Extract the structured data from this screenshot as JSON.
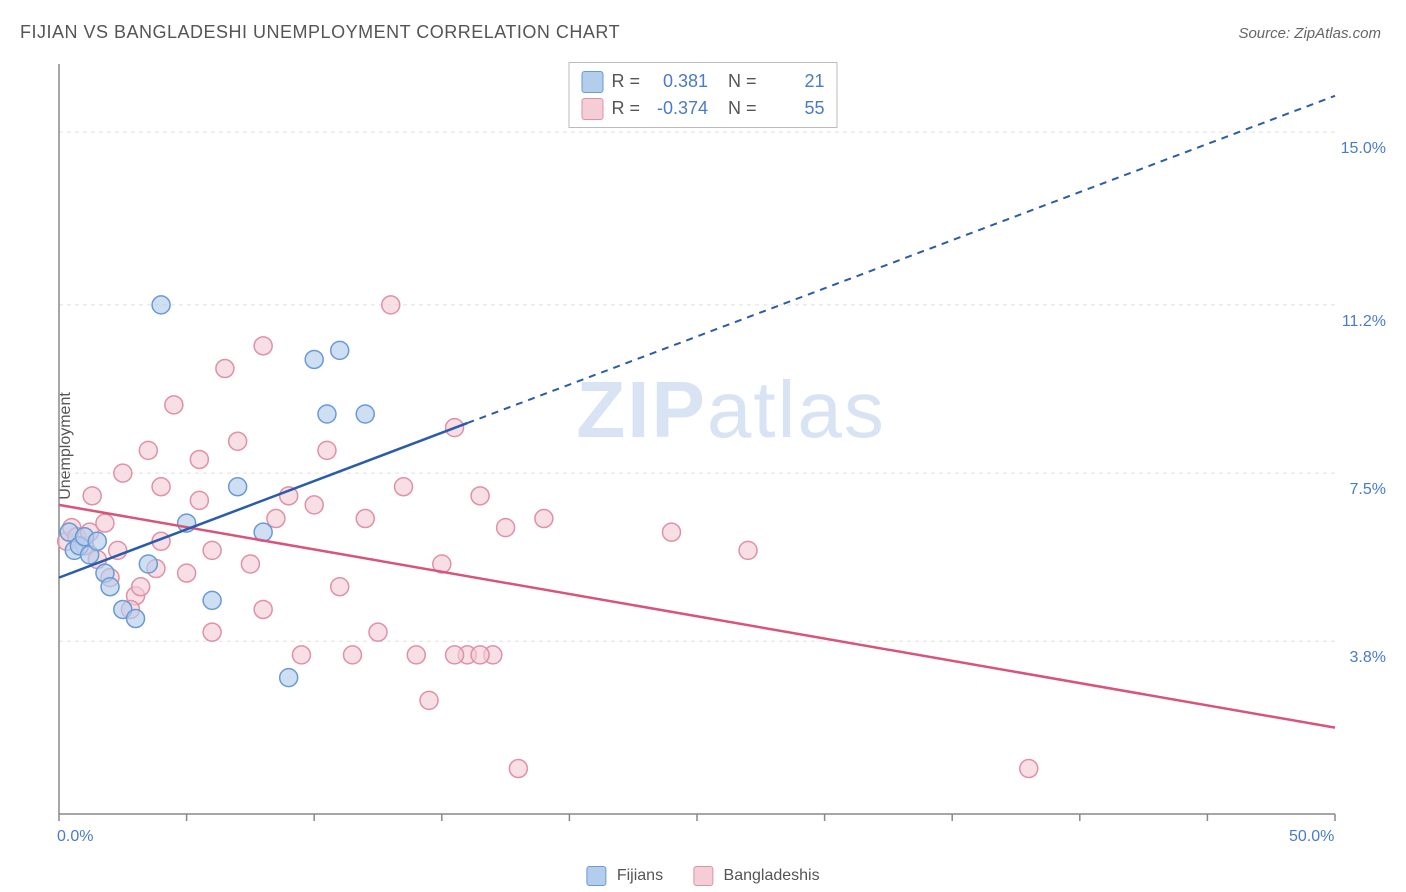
{
  "title": "FIJIAN VS BANGLADESHI UNEMPLOYMENT CORRELATION CHART",
  "source": "Source: ZipAtlas.com",
  "y_axis_label": "Unemployment",
  "watermark_zip": "ZIP",
  "watermark_atlas": "atlas",
  "chart": {
    "type": "scatter",
    "xlim": [
      0,
      50
    ],
    "ylim": [
      0,
      16.5
    ],
    "background_color": "#ffffff",
    "grid_color": "#e0e0e0",
    "axis_line_color": "#888888",
    "tick_color": "#888888",
    "x_ticks": [
      0,
      5,
      10,
      15,
      20,
      25,
      30,
      35,
      40,
      45,
      50
    ],
    "x_tick_labels": {
      "0": "0.0%",
      "50": "50.0%"
    },
    "y_gridlines": [
      3.8,
      7.5,
      11.2,
      15.0
    ],
    "y_tick_labels": {
      "3.8": "3.8%",
      "7.5": "7.5%",
      "11.2": "11.2%",
      "15.0": "15.0%"
    },
    "y_label_color": "#4a7bc8",
    "marker_radius": 9,
    "marker_stroke_width": 1.5,
    "line_width_solid": 2.5,
    "line_width_dashed": 2,
    "dash_pattern": "7,6"
  },
  "series": {
    "fijians": {
      "label": "Fijians",
      "fill_color": "#b3cdec",
      "stroke_color": "#6a9ad4",
      "line_color": "#2a5caa",
      "r_value": "0.381",
      "n_value": "21",
      "regression_solid": {
        "x1": 0,
        "y1": 5.2,
        "x2": 16,
        "y2": 8.6
      },
      "regression_dashed": {
        "x1": 16,
        "y1": 8.6,
        "x2": 50,
        "y2": 15.8
      },
      "points": [
        [
          0.4,
          6.2
        ],
        [
          0.6,
          5.8
        ],
        [
          0.8,
          5.9
        ],
        [
          1.0,
          6.1
        ],
        [
          1.2,
          5.7
        ],
        [
          1.5,
          6.0
        ],
        [
          1.8,
          5.3
        ],
        [
          2.0,
          5.0
        ],
        [
          2.5,
          4.5
        ],
        [
          3.0,
          4.3
        ],
        [
          3.5,
          5.5
        ],
        [
          4.0,
          11.2
        ],
        [
          5.0,
          6.4
        ],
        [
          6.0,
          4.7
        ],
        [
          7.0,
          7.2
        ],
        [
          8.0,
          6.2
        ],
        [
          9.0,
          3.0
        ],
        [
          10.0,
          10.0
        ],
        [
          10.5,
          8.8
        ],
        [
          11.0,
          10.2
        ],
        [
          12.0,
          8.8
        ]
      ]
    },
    "bangladeshis": {
      "label": "Bangladeshis",
      "fill_color": "#f4cdd7",
      "stroke_color": "#e091a5",
      "line_color": "#d9547a",
      "r_value": "-0.374",
      "n_value": "55",
      "regression_solid": {
        "x1": 0,
        "y1": 6.8,
        "x2": 50,
        "y2": 1.9
      },
      "points": [
        [
          0.3,
          6.0
        ],
        [
          0.5,
          6.3
        ],
        [
          0.7,
          6.1
        ],
        [
          1.0,
          5.9
        ],
        [
          1.2,
          6.2
        ],
        [
          1.5,
          5.6
        ],
        [
          1.8,
          6.4
        ],
        [
          2.0,
          5.2
        ],
        [
          2.3,
          5.8
        ],
        [
          2.5,
          7.5
        ],
        [
          3.0,
          4.8
        ],
        [
          3.2,
          5.0
        ],
        [
          3.5,
          8.0
        ],
        [
          4.0,
          6.0
        ],
        [
          4.5,
          9.0
        ],
        [
          5.0,
          5.3
        ],
        [
          5.5,
          7.8
        ],
        [
          6.0,
          4.0
        ],
        [
          6.5,
          9.8
        ],
        [
          7.0,
          8.2
        ],
        [
          7.5,
          5.5
        ],
        [
          8.0,
          10.3
        ],
        [
          8.5,
          6.5
        ],
        [
          9.0,
          7.0
        ],
        [
          9.5,
          3.5
        ],
        [
          10.0,
          6.8
        ],
        [
          10.5,
          8.0
        ],
        [
          11.0,
          5.0
        ],
        [
          11.5,
          3.5
        ],
        [
          12.0,
          6.5
        ],
        [
          12.5,
          4.0
        ],
        [
          13.0,
          11.2
        ],
        [
          13.5,
          7.2
        ],
        [
          14.0,
          3.5
        ],
        [
          14.5,
          2.5
        ],
        [
          15.0,
          5.5
        ],
        [
          15.5,
          8.5
        ],
        [
          16.0,
          3.5
        ],
        [
          16.5,
          7.0
        ],
        [
          17.0,
          3.5
        ],
        [
          17.5,
          6.3
        ],
        [
          18.0,
          1.0
        ],
        [
          19.0,
          6.5
        ],
        [
          24.0,
          6.2
        ],
        [
          27.0,
          5.8
        ],
        [
          38.0,
          1.0
        ],
        [
          4.0,
          7.2
        ],
        [
          6.0,
          5.8
        ],
        [
          8.0,
          4.5
        ],
        [
          5.5,
          6.9
        ],
        [
          2.8,
          4.5
        ],
        [
          1.3,
          7.0
        ],
        [
          3.8,
          5.4
        ],
        [
          15.5,
          3.5
        ],
        [
          16.5,
          3.5
        ]
      ]
    }
  },
  "legend": {
    "item1_key": "fijians",
    "item2_key": "bangladeshis"
  }
}
